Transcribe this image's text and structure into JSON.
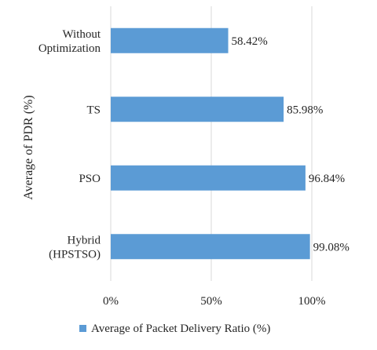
{
  "chart_data": {
    "type": "bar",
    "orientation": "horizontal",
    "categories": [
      [
        "Without",
        "Optimization"
      ],
      [
        "TS"
      ],
      [
        "PSO"
      ],
      [
        "Hybrid",
        "(HPSTSO)"
      ]
    ],
    "series": [
      {
        "name": "Average of Packet Delivery Ratio (%)",
        "values": [
          58.42,
          85.98,
          96.84,
          99.08
        ],
        "data_labels": [
          "58.42%",
          "85.98%",
          "96.84%",
          "99.08%"
        ],
        "color": "#5b9bd5"
      }
    ],
    "xlim": [
      0,
      100
    ],
    "x_ticks": [
      0,
      50,
      100
    ],
    "x_tick_labels": [
      "0%",
      "50%",
      "100%"
    ],
    "ylabel": "Average of PDR (%)",
    "xlabel": "",
    "grid": "vertical",
    "legend": "bottom"
  }
}
